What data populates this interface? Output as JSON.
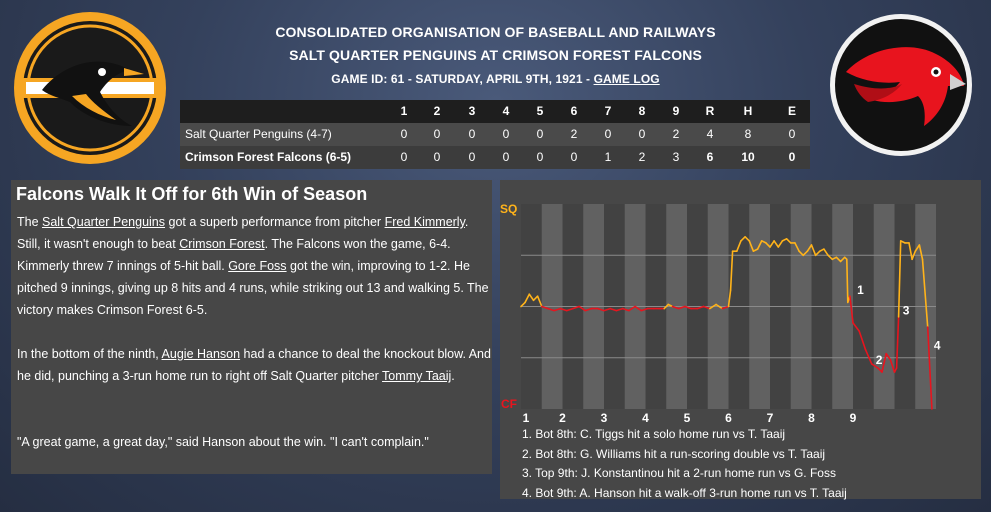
{
  "header": {
    "org": "CONSOLIDATED ORGANISATION OF BASEBALL AND RAILWAYS",
    "matchup": "SALT QUARTER PENGUINS AT CRIMSON FOREST FALCONS",
    "game_info": "GAME ID: 61 - SATURDAY, APRIL 9TH, 1921 - ",
    "game_log_link": "GAME LOG"
  },
  "linescore": {
    "columns": [
      "1",
      "2",
      "3",
      "4",
      "5",
      "6",
      "7",
      "8",
      "9",
      "R",
      "H",
      "E"
    ],
    "rows": [
      {
        "team": "Salt Quarter Penguins (4-7)",
        "innings": [
          "0",
          "0",
          "0",
          "0",
          "0",
          "2",
          "0",
          "0",
          "2"
        ],
        "R": "4",
        "H": "8",
        "E": "0"
      },
      {
        "team": "Crimson Forest Falcons (6-5)",
        "innings": [
          "0",
          "0",
          "0",
          "0",
          "0",
          "0",
          "1",
          "2",
          "3"
        ],
        "R": "6",
        "H": "10",
        "E": "0"
      }
    ]
  },
  "story": {
    "headline": "Falcons Walk It Off for 6th Win of Season",
    "p1": [
      {
        "t": "The "
      },
      {
        "t": "Salt Quarter Penguins",
        "u": true
      },
      {
        "t": " got a superb performance from pitcher "
      },
      {
        "t": "Fred Kimmerly",
        "u": true
      },
      {
        "t": ". Still, it wasn't enough to beat "
      },
      {
        "t": "Crimson Forest",
        "u": true
      },
      {
        "t": ". The Falcons won the game, 6-4. Kimmerly threw 7 innings of 5-hit ball. "
      },
      {
        "t": "Gore Foss",
        "u": true
      },
      {
        "t": " got the win, improving to 1-2. He pitched 9 innings, giving up 8 hits and 4 runs, while striking out 13 and walking 5. The victory makes Crimson Forest 6-5."
      }
    ],
    "p2": [
      {
        "t": "In the bottom of the ninth, "
      },
      {
        "t": "Augie Hanson",
        "u": true
      },
      {
        "t": " had a chance to deal the knockout blow. And he did, punching a 3-run home run to right off Salt Quarter pitcher "
      },
      {
        "t": "Tommy Taaij",
        "u": true
      },
      {
        "t": "."
      }
    ],
    "p3": "\"A great game, a great day,\" said Hanson about the win. \"I can't complain.\""
  },
  "chart_data": {
    "type": "line",
    "top_label": "SQ",
    "bottom_label": "CF",
    "x_labels": [
      "1",
      "2",
      "3",
      "4",
      "5",
      "6",
      "7",
      "8",
      "9"
    ],
    "ylim": [
      0,
      1
    ],
    "series_colors": {
      "sq": "#ffb31a",
      "cf": "#e8141e"
    },
    "points": [
      [
        0.0,
        0.5
      ],
      [
        0.2,
        0.52
      ],
      [
        0.4,
        0.56
      ],
      [
        0.6,
        0.53
      ],
      [
        0.8,
        0.55
      ],
      [
        1.0,
        0.5
      ],
      [
        1.3,
        0.49
      ],
      [
        1.6,
        0.48
      ],
      [
        1.9,
        0.49
      ],
      [
        2.2,
        0.48
      ],
      [
        2.5,
        0.49
      ],
      [
        2.8,
        0.5
      ],
      [
        3.1,
        0.48
      ],
      [
        3.4,
        0.49
      ],
      [
        3.7,
        0.49
      ],
      [
        4.0,
        0.48
      ],
      [
        4.3,
        0.49
      ],
      [
        4.6,
        0.48
      ],
      [
        4.9,
        0.49
      ],
      [
        5.2,
        0.48
      ],
      [
        5.5,
        0.5
      ],
      [
        5.8,
        0.48
      ],
      [
        6.1,
        0.49
      ],
      [
        6.4,
        0.49
      ],
      [
        6.7,
        0.49
      ],
      [
        6.9,
        0.49
      ],
      [
        7.1,
        0.51
      ],
      [
        7.3,
        0.5
      ],
      [
        7.6,
        0.49
      ],
      [
        7.9,
        0.5
      ],
      [
        8.2,
        0.49
      ],
      [
        8.5,
        0.49
      ],
      [
        8.8,
        0.5
      ],
      [
        9.1,
        0.49
      ],
      [
        9.4,
        0.51
      ],
      [
        9.7,
        0.49
      ],
      [
        10.0,
        0.5
      ],
      [
        10.1,
        0.58
      ],
      [
        10.2,
        0.77
      ],
      [
        10.4,
        0.77
      ],
      [
        10.6,
        0.82
      ],
      [
        10.8,
        0.84
      ],
      [
        11.0,
        0.82
      ],
      [
        11.2,
        0.77
      ],
      [
        11.4,
        0.78
      ],
      [
        11.6,
        0.82
      ],
      [
        11.8,
        0.81
      ],
      [
        12.0,
        0.79
      ],
      [
        12.2,
        0.82
      ],
      [
        12.4,
        0.79
      ],
      [
        12.6,
        0.82
      ],
      [
        12.8,
        0.83
      ],
      [
        13.0,
        0.81
      ],
      [
        13.2,
        0.81
      ],
      [
        13.4,
        0.77
      ],
      [
        13.6,
        0.75
      ],
      [
        13.8,
        0.77
      ],
      [
        14.0,
        0.8
      ],
      [
        14.2,
        0.75
      ],
      [
        14.4,
        0.77
      ],
      [
        14.6,
        0.78
      ],
      [
        14.8,
        0.75
      ],
      [
        15.0,
        0.73
      ],
      [
        15.2,
        0.74
      ],
      [
        15.4,
        0.72
      ],
      [
        15.6,
        0.74
      ],
      [
        15.7,
        0.73
      ],
      [
        15.75,
        0.52
      ],
      [
        15.85,
        0.55
      ],
      [
        16.0,
        0.42
      ],
      [
        16.3,
        0.38
      ],
      [
        16.6,
        0.29
      ],
      [
        16.9,
        0.22
      ],
      [
        17.2,
        0.2
      ],
      [
        17.4,
        0.18
      ],
      [
        17.6,
        0.27
      ],
      [
        17.8,
        0.24
      ],
      [
        18.0,
        0.18
      ],
      [
        18.1,
        0.2
      ],
      [
        18.2,
        0.45
      ],
      [
        18.3,
        0.82
      ],
      [
        18.5,
        0.81
      ],
      [
        18.7,
        0.81
      ],
      [
        18.85,
        0.73
      ],
      [
        19.0,
        0.77
      ],
      [
        19.2,
        0.8
      ],
      [
        19.35,
        0.73
      ],
      [
        19.6,
        0.4
      ],
      [
        19.8,
        0.0
      ]
    ],
    "annotations": [
      {
        "label": "1",
        "x": 16.1,
        "y": 0.56
      },
      {
        "label": "2",
        "x": 17.0,
        "y": 0.22
      },
      {
        "label": "3",
        "x": 18.3,
        "y": 0.46
      },
      {
        "label": "4",
        "x": 19.8,
        "y": 0.29
      }
    ],
    "legend": [
      "1. Bot 8th: C. Tiggs hit a solo home run vs T. Taaij",
      "2. Bot 8th: G. Williams hit a run-scoring double vs T. Taaij",
      "3. Top 9th: J. Konstantinou hit a 2-run home run vs G. Foss",
      "4. Bot 9th: A. Hanson hit a walk-off 3-run home run vs T. Taaij"
    ]
  }
}
